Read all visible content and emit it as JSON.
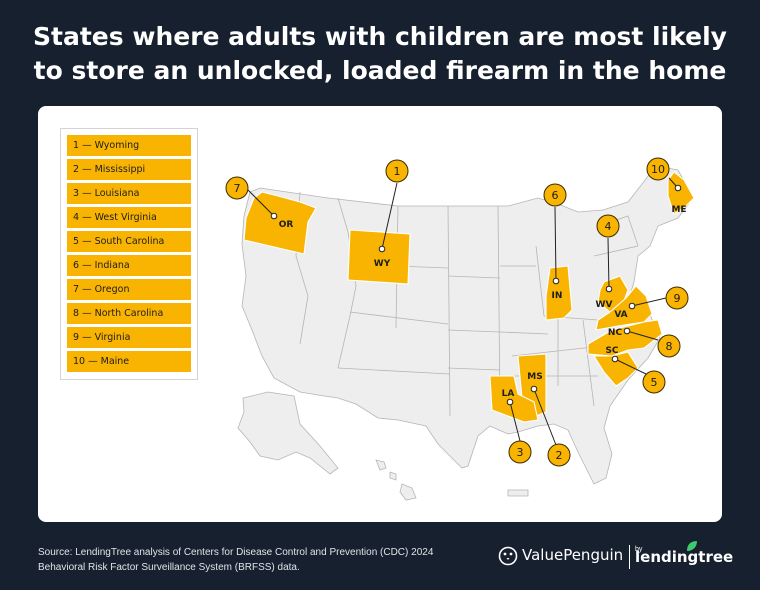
{
  "title": {
    "line1": "States where adults with children are most likely",
    "line2": "to store an unlocked, loaded firearm in the home"
  },
  "legend": [
    "1 — Wyoming",
    "2 — Mississippi",
    "3 — Louisiana",
    "4 — West Virginia",
    "5 — South Carolina",
    "6 — Indiana",
    "7 — Oregon",
    "8 — North Carolina",
    "9 — Virginia",
    "10 — Maine"
  ],
  "states": [
    {
      "rank": "1",
      "abbr": "WY"
    },
    {
      "rank": "2",
      "abbr": "MS"
    },
    {
      "rank": "3",
      "abbr": "LA"
    },
    {
      "rank": "4",
      "abbr": "WV"
    },
    {
      "rank": "5",
      "abbr": "SC"
    },
    {
      "rank": "6",
      "abbr": "IN"
    },
    {
      "rank": "7",
      "abbr": "OR"
    },
    {
      "rank": "8",
      "abbr": "NC"
    },
    {
      "rank": "9",
      "abbr": "VA"
    },
    {
      "rank": "10",
      "abbr": "ME"
    }
  ],
  "colors": {
    "background": "#17202e",
    "highlight": "#f8b400",
    "other_states": "#eeeeee"
  },
  "source": {
    "line1": "Source: LendingTree analysis of Centers for Disease Control and Prevention (CDC) 2024",
    "line2": "Behavioral Risk Factor Surveillance System (BRFSS) data."
  },
  "brand": {
    "valuepenguin": "ValuePenguin",
    "by": "by",
    "lendingtree": "lendingtree"
  }
}
